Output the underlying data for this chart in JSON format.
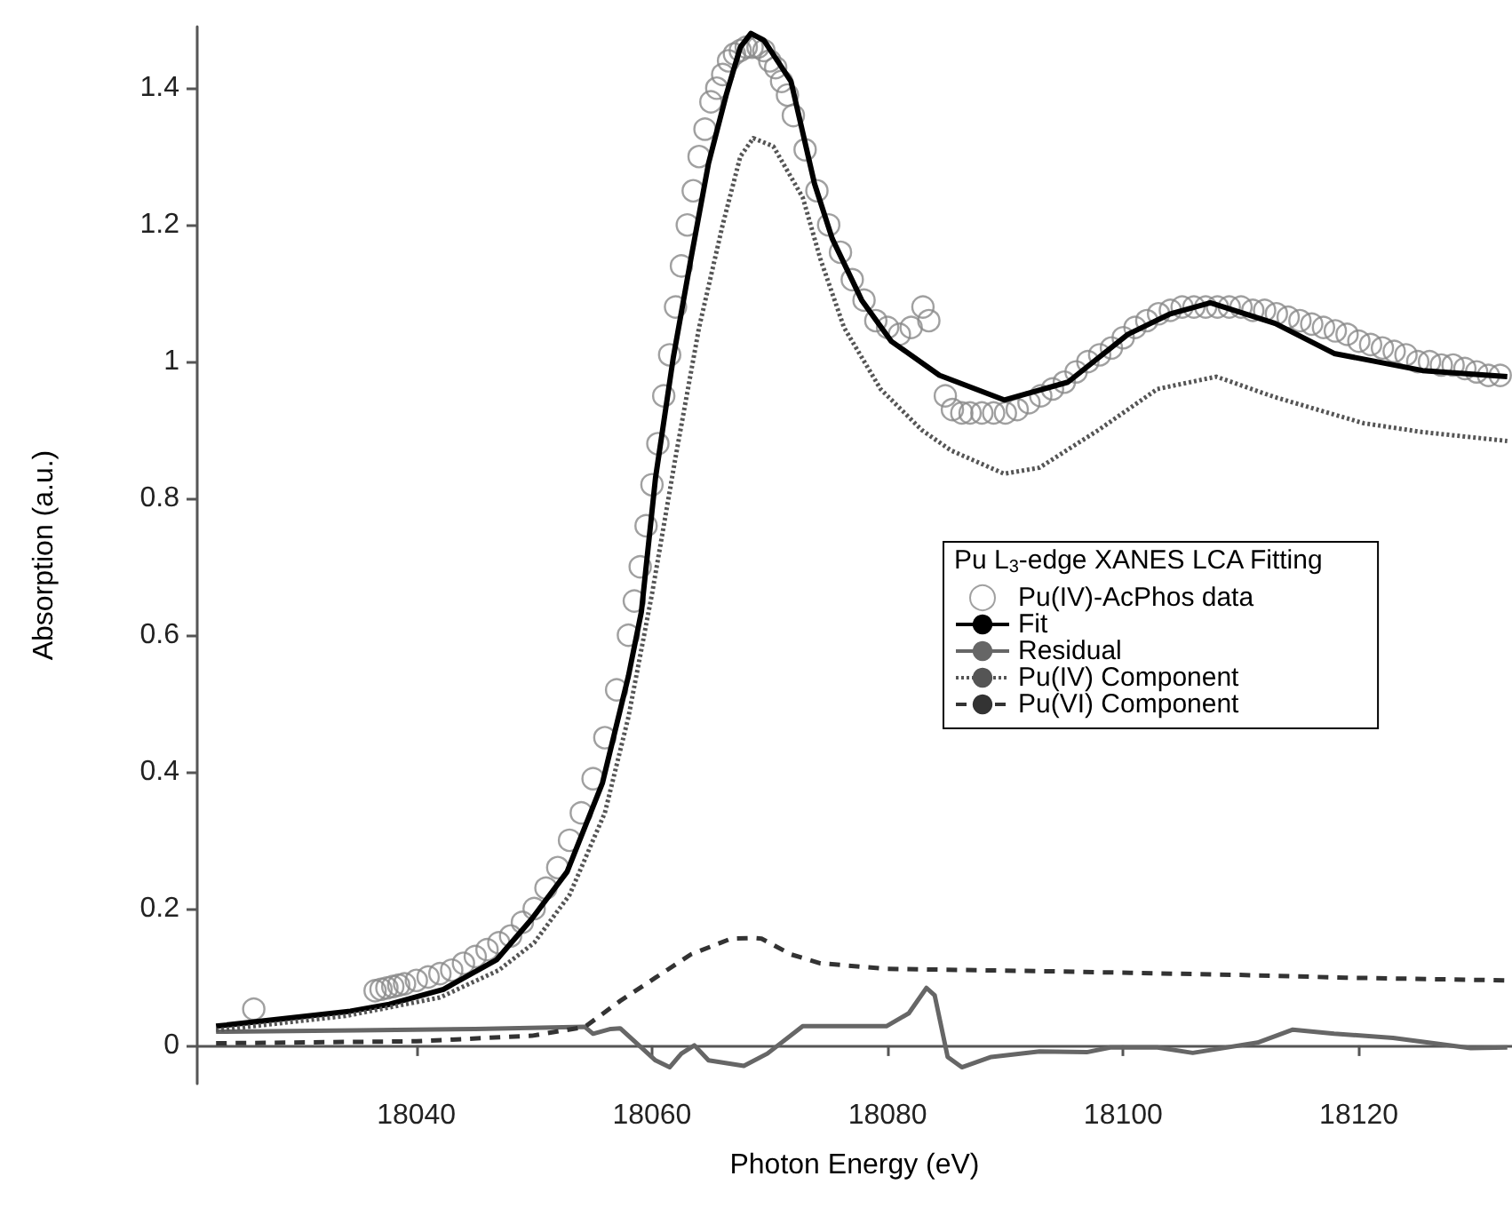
{
  "chart_data": {
    "type": "line",
    "xlabel": "Photon Energy (eV)",
    "ylabel": "Absorption (a.u.)",
    "legend_title": "Pu L$_{3}$-edge XANES LCA Fitting",
    "legend": "right",
    "grid": false,
    "xlim": [
      18021.4,
      18133
    ],
    "ylim": [
      -0.056,
      1.49
    ],
    "xticks": [
      18040,
      18060,
      18080,
      18100,
      18120
    ],
    "yticks": [
      0,
      0.2,
      0.4,
      0.6,
      0.8,
      1.0,
      1.2,
      1.4
    ],
    "series": [
      {
        "name": "Pu(IV)-AcPhos data",
        "type": "scatter",
        "marker": "circle",
        "color": "#888888",
        "x": [
          18026.2,
          18036.5,
          18037,
          18037.5,
          18038,
          18038.5,
          18039,
          18040,
          18041,
          18042,
          18043,
          18044,
          18045,
          18046,
          18047,
          18048,
          18049,
          18050,
          18051,
          18052,
          18053,
          18054,
          18055,
          18056,
          18057,
          18058,
          18058.5,
          18059,
          18059.5,
          18060,
          18060.5,
          18061,
          18061.5,
          18062,
          18062.5,
          18063,
          18063.5,
          18064,
          18064.5,
          18065,
          18065.5,
          18066,
          18066.5,
          18067,
          18067.5,
          18068,
          18068.5,
          18069,
          18069.5,
          18070,
          18070.5,
          18071,
          18071.5,
          18072,
          18073,
          18074,
          18075,
          18076,
          18077,
          18078,
          18079,
          18080,
          18081,
          18082,
          18083,
          18083.5,
          18084.9,
          18085.5,
          18086.3,
          18087,
          18088,
          18089,
          18090,
          18091,
          18092,
          18093,
          18094,
          18095,
          18096,
          18097,
          18098,
          18099,
          18100,
          18101,
          18102,
          18103,
          18104,
          18105,
          18106,
          18107,
          18108,
          18109,
          18110,
          18111,
          18112,
          18113,
          18114,
          18115,
          18116,
          18117,
          18118,
          18119,
          18120,
          18121,
          18122,
          18123,
          18124,
          18125,
          18126,
          18127,
          18128,
          18129,
          18130,
          18131,
          18132
        ],
        "values": [
          0.053,
          0.08,
          0.082,
          0.084,
          0.086,
          0.088,
          0.09,
          0.095,
          0.1,
          0.105,
          0.11,
          0.12,
          0.13,
          0.14,
          0.15,
          0.16,
          0.18,
          0.2,
          0.23,
          0.26,
          0.3,
          0.34,
          0.39,
          0.45,
          0.52,
          0.6,
          0.65,
          0.7,
          0.76,
          0.82,
          0.88,
          0.95,
          1.01,
          1.08,
          1.14,
          1.2,
          1.25,
          1.3,
          1.34,
          1.38,
          1.4,
          1.42,
          1.44,
          1.45,
          1.455,
          1.46,
          1.46,
          1.46,
          1.455,
          1.44,
          1.43,
          1.41,
          1.39,
          1.36,
          1.31,
          1.25,
          1.2,
          1.16,
          1.12,
          1.09,
          1.06,
          1.05,
          1.04,
          1.05,
          1.08,
          1.06,
          0.95,
          0.93,
          0.925,
          0.925,
          0.925,
          0.925,
          0.925,
          0.93,
          0.94,
          0.95,
          0.96,
          0.97,
          0.985,
          1.0,
          1.01,
          1.02,
          1.035,
          1.05,
          1.06,
          1.07,
          1.075,
          1.08,
          1.08,
          1.08,
          1.08,
          1.08,
          1.08,
          1.075,
          1.075,
          1.07,
          1.065,
          1.06,
          1.055,
          1.05,
          1.045,
          1.04,
          1.03,
          1.025,
          1.02,
          1.015,
          1.01,
          1.0,
          1.0,
          0.995,
          0.995,
          0.99,
          0.985,
          0.98,
          0.98
        ]
      },
      {
        "name": "Fit",
        "line_style": "solid",
        "color": "#000000",
        "x": [
          18023,
          18034.4,
          18037.7,
          18042.3,
          18046.8,
          18049.8,
          18052.8,
          18055.8,
          18058,
          18059.1,
          18060.3,
          18061.8,
          18063.3,
          18064.8,
          18066.3,
          18067.5,
          18068.4,
          18069.5,
          18071.8,
          18073.8,
          18075.3,
          18077.8,
          18080.3,
          18084.4,
          18089.9,
          18095.3,
          18100.4,
          18104,
          18107.4,
          18112.9,
          18117.9,
          18125.4,
          18132.6
        ],
        "values": [
          0.028,
          0.05,
          0.06,
          0.082,
          0.125,
          0.185,
          0.254,
          0.384,
          0.54,
          0.634,
          0.83,
          1.005,
          1.15,
          1.29,
          1.39,
          1.46,
          1.48,
          1.47,
          1.41,
          1.26,
          1.18,
          1.09,
          1.03,
          0.98,
          0.944,
          0.97,
          1.04,
          1.07,
          1.086,
          1.056,
          1.012,
          0.987,
          0.978
        ]
      },
      {
        "name": "Residual",
        "line_style": "solid",
        "color": "#666666",
        "x": [
          18023,
          18035,
          18045,
          18054.3,
          18055,
          18056.5,
          18057.3,
          18060.3,
          18061.5,
          18062.5,
          18063.6,
          18064.8,
          18067.8,
          18069.8,
          18072.8,
          18079.9,
          18081.8,
          18083.3,
          18084,
          18085.1,
          18086.3,
          18088.8,
          18092.9,
          18096.9,
          18098.9,
          18102.9,
          18105.9,
          18111.4,
          18114.4,
          18117.9,
          18122.9,
          18129.5,
          18132.6
        ],
        "values": [
          0.02,
          0.022,
          0.024,
          0.027,
          0.017,
          0.024,
          0.025,
          -0.022,
          -0.032,
          -0.012,
          0.0,
          -0.022,
          -0.03,
          -0.012,
          0.028,
          0.028,
          0.047,
          0.084,
          0.073,
          -0.017,
          -0.032,
          -0.017,
          -0.009,
          -0.01,
          -0.003,
          -0.003,
          -0.011,
          0.004,
          0.023,
          0.017,
          0.011,
          -0.004,
          -0.003
        ]
      },
      {
        "name": "Pu(IV) Component",
        "line_style": "dotted",
        "color": "#555555",
        "x": [
          18023,
          18034,
          18042,
          18047,
          18050,
          18053,
          18056,
          18058,
          18060,
          18062,
          18064,
          18066,
          18067.5,
          18068.6,
          18070.3,
          18072.8,
          18074.3,
          18076.3,
          18079.4,
          18082.9,
          18085.4,
          18089.9,
          18092.9,
          18097.9,
          18102.9,
          18107.9,
          18112.9,
          18120.4,
          18125.4,
          18132.6
        ],
        "values": [
          0.022,
          0.043,
          0.07,
          0.11,
          0.15,
          0.22,
          0.34,
          0.48,
          0.66,
          0.86,
          1.05,
          1.2,
          1.3,
          1.327,
          1.315,
          1.24,
          1.15,
          1.05,
          0.96,
          0.9,
          0.87,
          0.836,
          0.845,
          0.9,
          0.96,
          0.978,
          0.948,
          0.91,
          0.897,
          0.884
        ]
      },
      {
        "name": "Pu(VI) Component",
        "line_style": "dashed",
        "color": "#333333",
        "x": [
          18023,
          18040,
          18049.8,
          18054.3,
          18057.3,
          18060.3,
          18063.3,
          18066.7,
          18068.6,
          18069.3,
          18071.8,
          18074.3,
          18079.9,
          18094.9,
          18109.9,
          18118.9,
          18132.6
        ],
        "values": [
          0.003,
          0.006,
          0.014,
          0.027,
          0.065,
          0.099,
          0.133,
          0.156,
          0.157,
          0.156,
          0.133,
          0.12,
          0.112,
          0.108,
          0.103,
          0.099,
          0.095
        ]
      }
    ]
  }
}
